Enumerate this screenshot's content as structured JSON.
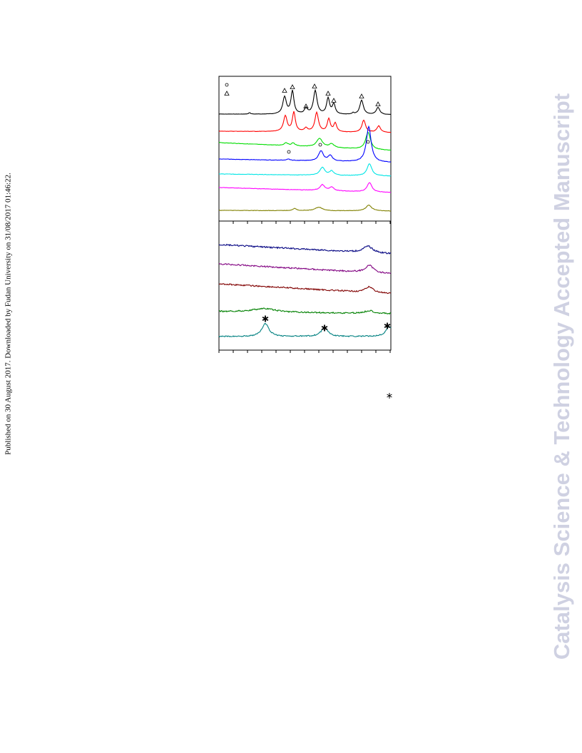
{
  "margin_note": "Published on 30 August 2017. Downloaded by Fudan University on 31/08/2017 01:46:22.",
  "watermark": "Catalysis Science & Technology Accepted Manuscript"
}
